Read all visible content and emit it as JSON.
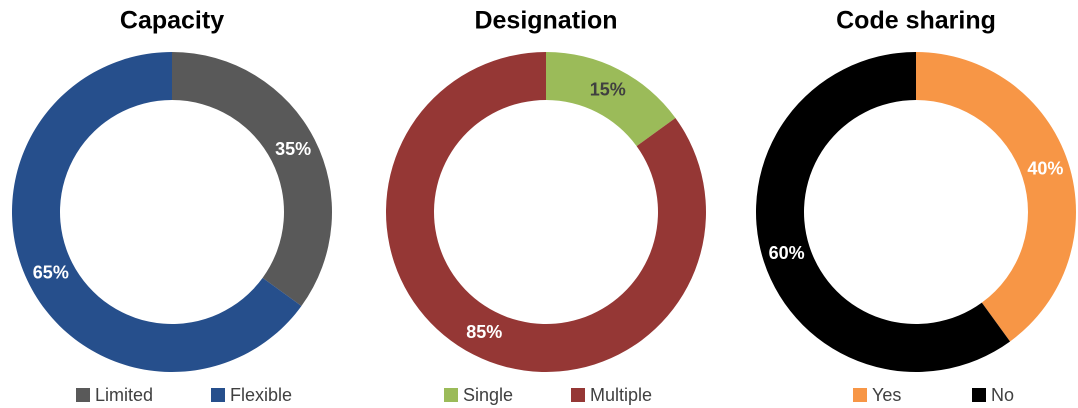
{
  "chart_data": [
    {
      "type": "donut",
      "title": "Capacity",
      "categories": [
        "Limited",
        "Flexible"
      ],
      "values": [
        35,
        65
      ],
      "value_labels": [
        "35%",
        "65%"
      ],
      "colors": [
        "#595959",
        "#264f8c"
      ],
      "label_colors": [
        "#ffffff",
        "#ffffff"
      ],
      "legend": "bottom"
    },
    {
      "type": "donut",
      "title": "Designation",
      "categories": [
        "Single",
        "Multiple"
      ],
      "values": [
        15,
        85
      ],
      "value_labels": [
        "15%",
        "85%"
      ],
      "colors": [
        "#9bbb59",
        "#953735"
      ],
      "label_colors": [
        "#404040",
        "#ffffff"
      ],
      "legend": "bottom"
    },
    {
      "type": "donut",
      "title": "Code sharing",
      "categories": [
        "Yes",
        "No"
      ],
      "values": [
        40,
        60
      ],
      "value_labels": [
        "40%",
        "60%"
      ],
      "colors": [
        "#f79646",
        "#000000"
      ],
      "label_colors": [
        "#ffffff",
        "#ffffff"
      ],
      "legend": "bottom"
    }
  ]
}
